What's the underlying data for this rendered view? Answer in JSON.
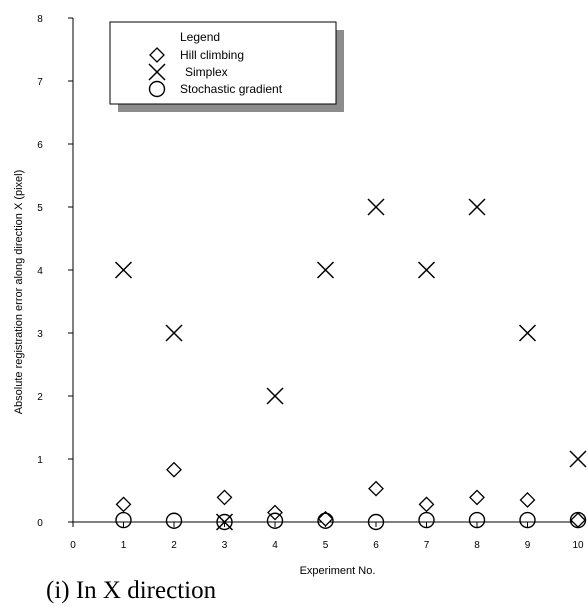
{
  "caption": "(i) In X direction",
  "chart_data": {
    "type": "scatter",
    "xlabel": "Experiment No.",
    "ylabel": "Absolute registration error along direction X (pixel)",
    "xlim": [
      0,
      10
    ],
    "ylim": [
      0,
      8
    ],
    "x_ticks": [
      "0",
      "1",
      "2",
      "3",
      "4",
      "5",
      "6",
      "7",
      "8",
      "9",
      "10"
    ],
    "y_ticks": [
      "0",
      "1",
      "2",
      "3",
      "4",
      "5",
      "6",
      "7",
      "8"
    ],
    "grid": false,
    "legend": {
      "title": "Legend",
      "placement": "top-left",
      "entries": [
        "Hill climbing",
        "Simplex",
        "Stochastic gradient"
      ]
    },
    "series": [
      {
        "name": "Hill climbing",
        "marker": "diamond",
        "x": [
          1,
          2,
          3,
          4,
          5,
          6,
          7,
          8,
          9,
          10
        ],
        "y": [
          0.28,
          0.83,
          0.39,
          0.15,
          0.05,
          0.53,
          0.28,
          0.39,
          0.35,
          0.03
        ]
      },
      {
        "name": "Simplex",
        "marker": "cross",
        "x": [
          1,
          2,
          3,
          4,
          5,
          6,
          7,
          8,
          9,
          10
        ],
        "y": [
          4,
          3,
          0,
          2,
          4,
          5,
          4,
          5,
          3,
          1
        ]
      },
      {
        "name": "Stochastic gradient",
        "marker": "circle",
        "x": [
          1,
          2,
          3,
          4,
          5,
          6,
          7,
          8,
          9,
          10
        ],
        "y": [
          0.03,
          0.02,
          0.0,
          0.02,
          0.02,
          0.0,
          0.03,
          0.03,
          0.03,
          0.03
        ]
      }
    ]
  }
}
